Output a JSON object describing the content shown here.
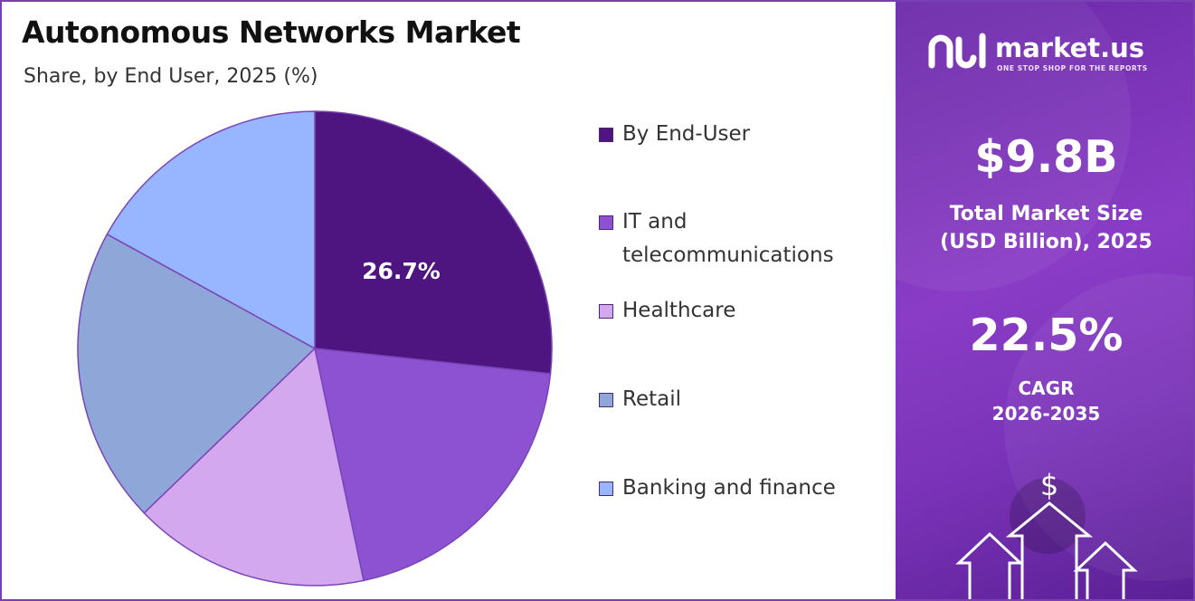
{
  "header": {
    "title": "Autonomous Networks Market",
    "subtitle": "Share, by End User, 2025 (%)"
  },
  "chart_data": {
    "type": "pie",
    "title": "Autonomous Networks Market",
    "subtitle": "Share, by End User, 2025 (%)",
    "legend_position": "right",
    "legend": [
      "By End-User",
      "IT and telecommunications",
      "Healthcare",
      "Retail",
      "Banking and finance"
    ],
    "slices": [
      {
        "label": "By End-User",
        "value": 26.7,
        "color": "#4e1580",
        "data_label": "26.7%"
      },
      {
        "label": "IT and telecommunications",
        "value": 20.0,
        "color": "#8c52d2",
        "data_label": ""
      },
      {
        "label": "Healthcare",
        "value": 16.1,
        "color": "#d4a8ee",
        "data_label": ""
      },
      {
        "label": "Retail",
        "value": 20.2,
        "color": "#8ea6d8",
        "data_label": ""
      },
      {
        "label": "Banking and finance",
        "value": 17.0,
        "color": "#97b6ff",
        "data_label": ""
      }
    ]
  },
  "panel": {
    "brand": "market.us",
    "tagline": "ONE STOP SHOP FOR THE REPORTS",
    "market_size_value": "$9.8B",
    "market_size_label_line1": "Total Market Size",
    "market_size_label_line2": "(USD Billion), 2025",
    "cagr_value": "22.5%",
    "cagr_label_line1": "CAGR",
    "cagr_label_line2": "2026-2035",
    "accent_color": "#7b3fb5"
  }
}
